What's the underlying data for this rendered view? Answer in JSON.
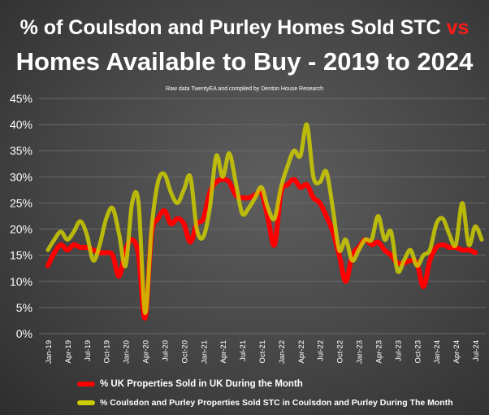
{
  "chart_data": {
    "type": "line",
    "title_line1": "% of Coulsdon and Purley Homes Sold STC",
    "title_vs": "vs",
    "title_line2": "Homes Available to Buy - 2019 to 2024",
    "subtitle": "Raw data TwentyEA and compiled by Denton House Research",
    "ylim": [
      0,
      45
    ],
    "yticks": [
      "0%",
      "5%",
      "10%",
      "15%",
      "20%",
      "25%",
      "30%",
      "35%",
      "40%",
      "45%"
    ],
    "xticks": [
      "Jan-19",
      "Apr-19",
      "Jul-19",
      "Oct-19",
      "Jan-20",
      "Apr-20",
      "Jul-20",
      "Oct-20",
      "Jan-21",
      "Apr-21",
      "Jul-21",
      "Oct-21",
      "Jan-22",
      "Apr-22",
      "Jul-22",
      "Oct-22",
      "Jan-23",
      "Apr-23",
      "Jul-23",
      "Oct-23",
      "Jan-24",
      "Apr-24",
      "Jul-24"
    ],
    "x_start": "Jan-19",
    "x_interval": "monthly",
    "grid": true,
    "legend_position": "bottom",
    "series": [
      {
        "name": "% UK Properties Sold in UK During the Month",
        "color": "#ff0000",
        "values": [
          13,
          15.5,
          17,
          16,
          17,
          16.5,
          16.5,
          16,
          15.5,
          15.5,
          15,
          11,
          16,
          18,
          15,
          3,
          19,
          22,
          23.5,
          21,
          22,
          21,
          17.5,
          21,
          22,
          27,
          29,
          29.5,
          29,
          26.5,
          26,
          26,
          26.5,
          27,
          22,
          17,
          27,
          28.5,
          29.5,
          28,
          28.5,
          26,
          25,
          22.5,
          19.5,
          15,
          10,
          15,
          16.5,
          18,
          17,
          17.5,
          16,
          15,
          13.5,
          13.5,
          14,
          13.5,
          9,
          14,
          16.5,
          17,
          16.5,
          16.5,
          16,
          16,
          15.5
        ]
      },
      {
        "name": "% Coulsdon and Purley Properties Sold STC in Coulsdon and Purley During The Month",
        "color": "#cccc00",
        "values": [
          16,
          18,
          19.5,
          18,
          19.5,
          21.5,
          19,
          14,
          17,
          22,
          24,
          19,
          13,
          25,
          25,
          4,
          20,
          29,
          30.5,
          27,
          25,
          27.5,
          30,
          20,
          18.5,
          24,
          34,
          30,
          34.5,
          29,
          23,
          24,
          26,
          28,
          24,
          22,
          28,
          32,
          35,
          34,
          40,
          30,
          29,
          31,
          24,
          16,
          18,
          14,
          16,
          18,
          18,
          22.5,
          18,
          19.5,
          12,
          14,
          16,
          13,
          15,
          16,
          21,
          22,
          19,
          17,
          25,
          17,
          20.5,
          18
        ]
      }
    ]
  }
}
